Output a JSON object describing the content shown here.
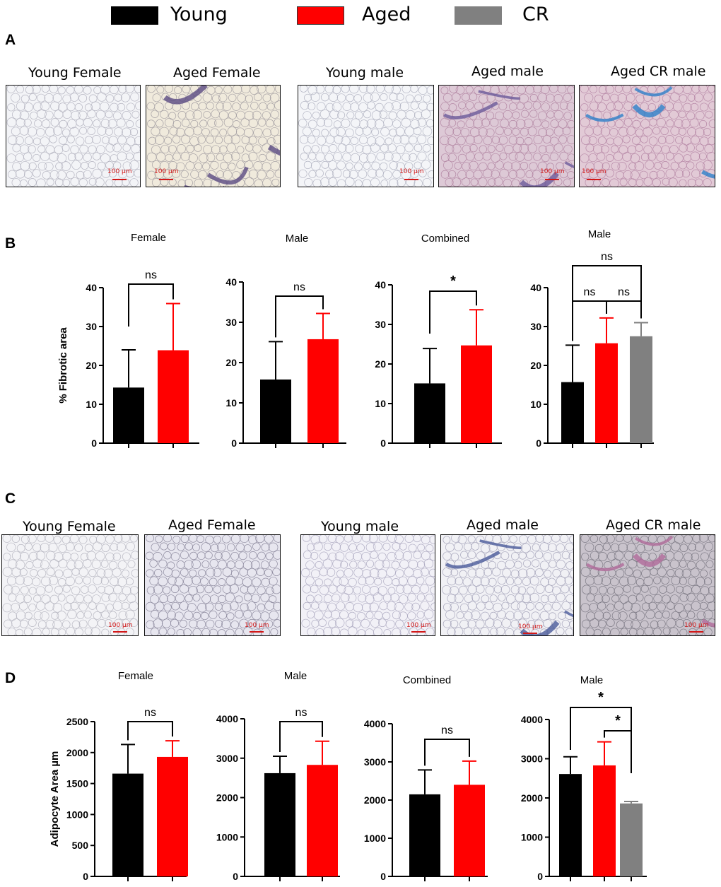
{
  "legend": [
    {
      "label": "Young",
      "color": "#000000"
    },
    {
      "label": "Aged",
      "color": "#ff0000"
    },
    {
      "label": "CR",
      "color": "#808080"
    }
  ],
  "panel_letters": [
    "A",
    "B",
    "C",
    "D"
  ],
  "panel_a": {
    "images": [
      {
        "title": "Young Female",
        "scale": "100 µm"
      },
      {
        "title": "Aged Female",
        "scale": "100 µm"
      },
      {
        "title": "Young male",
        "scale": "100 µm"
      },
      {
        "title": "Aged male",
        "scale": "100 µm"
      },
      {
        "title": "Aged CR male",
        "scale": "100 µm"
      }
    ]
  },
  "panel_c": {
    "images": [
      {
        "title": "Young Female",
        "scale": "100 µm"
      },
      {
        "title": "Aged Female",
        "scale": "100 µm"
      },
      {
        "title": "Young male",
        "scale": "100 µm"
      },
      {
        "title": "Aged male",
        "scale": "100 µm"
      },
      {
        "title": "Aged CR male",
        "scale": "100 µm"
      }
    ]
  },
  "chart_data": [
    {
      "panel": "B",
      "type": "bar",
      "title": "Female",
      "ylabel": "% Fibrotic area",
      "ylim": [
        0,
        40
      ],
      "yticks": [
        0,
        10,
        20,
        30,
        40
      ],
      "categories": [
        "Young",
        "Aged"
      ],
      "values": [
        14.3,
        23.9
      ],
      "errors": [
        9.7,
        12.0
      ],
      "colors": [
        "#000000",
        "#ff0000"
      ],
      "annotations": [
        {
          "text": "ns",
          "from": 0,
          "to": 1
        }
      ]
    },
    {
      "panel": "B",
      "type": "bar",
      "title": "Male",
      "ylabel": "",
      "ylim": [
        0,
        40
      ],
      "yticks": [
        0,
        10,
        20,
        30,
        40
      ],
      "categories": [
        "Young",
        "Aged"
      ],
      "values": [
        15.8,
        25.8
      ],
      "errors": [
        9.4,
        6.4
      ],
      "colors": [
        "#000000",
        "#ff0000"
      ],
      "annotations": [
        {
          "text": "ns",
          "from": 0,
          "to": 1
        }
      ]
    },
    {
      "panel": "B",
      "type": "bar",
      "title": "Combined",
      "ylabel": "",
      "ylim": [
        0,
        40
      ],
      "yticks": [
        0,
        10,
        20,
        30,
        40
      ],
      "categories": [
        "Young",
        "Aged"
      ],
      "values": [
        15.1,
        24.7
      ],
      "errors": [
        8.8,
        9.0
      ],
      "colors": [
        "#000000",
        "#ff0000"
      ],
      "annotations": [
        {
          "text": "*",
          "from": 0,
          "to": 1
        }
      ]
    },
    {
      "panel": "B",
      "type": "bar",
      "title": "Male",
      "ylabel": "",
      "ylim": [
        0,
        40
      ],
      "yticks": [
        0,
        10,
        20,
        30,
        40
      ],
      "categories": [
        "Young",
        "Aged",
        "CR"
      ],
      "values": [
        15.7,
        25.7,
        27.5
      ],
      "errors": [
        9.5,
        6.5,
        3.5
      ],
      "colors": [
        "#000000",
        "#ff0000",
        "#808080"
      ],
      "annotations": [
        {
          "text": "ns",
          "from": 0,
          "to": 1
        },
        {
          "text": "ns",
          "from": 1,
          "to": 2
        },
        {
          "text": "ns",
          "from": 0,
          "to": 2
        }
      ]
    },
    {
      "panel": "D",
      "type": "bar",
      "title": "Female",
      "ylabel": "Adipocyte Area µm",
      "ylim": [
        0,
        2500
      ],
      "yticks": [
        0,
        500,
        1000,
        1500,
        2000,
        2500
      ],
      "categories": [
        "Young",
        "Aged"
      ],
      "values": [
        1660,
        1930
      ],
      "errors": [
        470,
        260
      ],
      "colors": [
        "#000000",
        "#ff0000"
      ],
      "annotations": [
        {
          "text": "ns",
          "from": 0,
          "to": 1
        }
      ]
    },
    {
      "panel": "D",
      "type": "bar",
      "title": "Male",
      "ylabel": "",
      "ylim": [
        0,
        4000
      ],
      "yticks": [
        0,
        1000,
        2000,
        3000,
        4000
      ],
      "categories": [
        "Young",
        "Aged"
      ],
      "values": [
        2620,
        2830
      ],
      "errors": [
        430,
        600
      ],
      "colors": [
        "#000000",
        "#ff0000"
      ],
      "annotations": [
        {
          "text": "ns",
          "from": 0,
          "to": 1
        }
      ]
    },
    {
      "panel": "D",
      "type": "bar",
      "title": "Combined",
      "ylabel": "",
      "ylim": [
        0,
        4000
      ],
      "yticks": [
        0,
        1000,
        2000,
        3000,
        4000
      ],
      "categories": [
        "Young",
        "Aged"
      ],
      "values": [
        2150,
        2400
      ],
      "errors": [
        640,
        620
      ],
      "colors": [
        "#000000",
        "#ff0000"
      ],
      "annotations": [
        {
          "text": "ns",
          "from": 0,
          "to": 1
        }
      ]
    },
    {
      "panel": "D",
      "type": "bar",
      "title": "Male",
      "ylabel": "",
      "ylim": [
        0,
        4000
      ],
      "yticks": [
        0,
        1000,
        2000,
        3000,
        4000
      ],
      "categories": [
        "Young",
        "Aged",
        "CR"
      ],
      "values": [
        2610,
        2830,
        1860
      ],
      "errors": [
        440,
        600,
        50
      ],
      "colors": [
        "#000000",
        "#ff0000",
        "#808080"
      ],
      "annotations": [
        {
          "text": "*",
          "from": 0,
          "to": 2
        },
        {
          "text": "*",
          "from": 1,
          "to": 2
        }
      ]
    }
  ]
}
